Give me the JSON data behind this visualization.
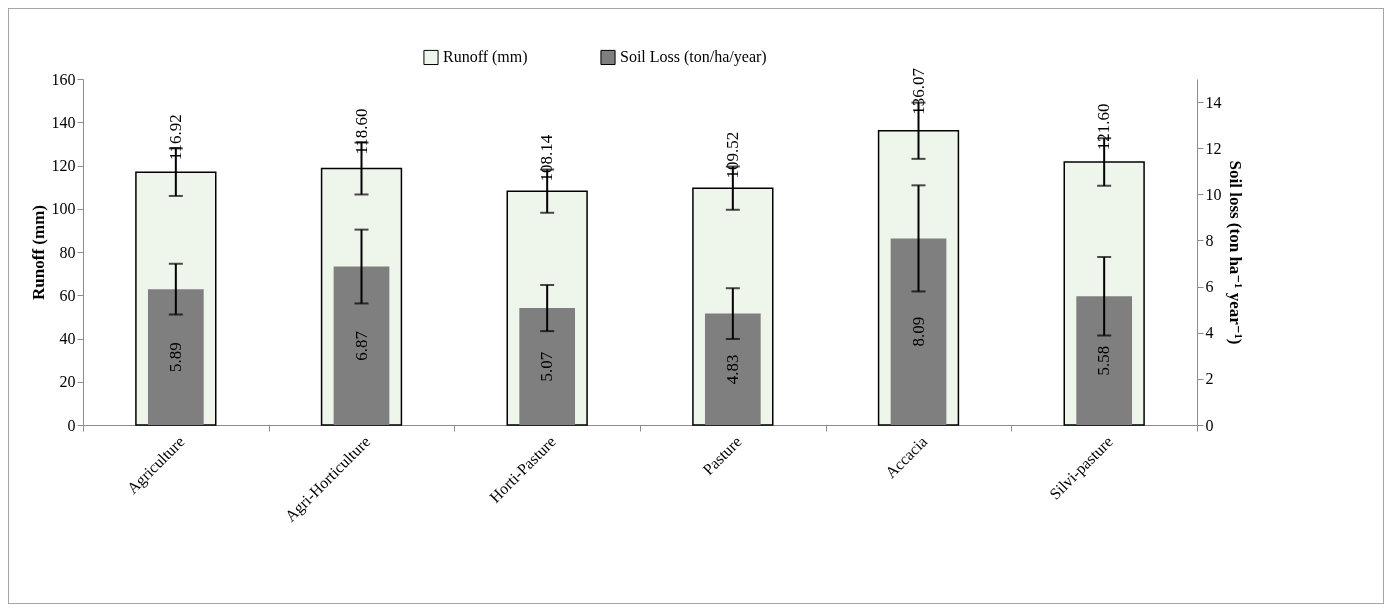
{
  "chart_data": {
    "type": "bar",
    "categories": [
      "Agriculture",
      "Agri-Horticulture",
      "Horti-Pasture",
      "Pasture",
      "Accacia",
      "Silvi-pasture"
    ],
    "series": [
      {
        "name": "Runoff (mm)",
        "color": "#eef5ea",
        "values": [
          116.92,
          118.6,
          108.14,
          109.52,
          136.07,
          121.6
        ],
        "errors": [
          11,
          12,
          10,
          10,
          13,
          11
        ],
        "value_labels": [
          "116.92",
          "118.60",
          "108.14",
          "109.52",
          "136.07",
          "121.60"
        ]
      },
      {
        "name": "Soil Loss (ton/ha/year)",
        "color": "#7f7f7f",
        "axis": "y2",
        "values": [
          5.89,
          6.87,
          5.07,
          4.83,
          8.09,
          5.58
        ],
        "errors": [
          1.1,
          1.6,
          1.0,
          1.1,
          2.3,
          1.7
        ],
        "value_labels": [
          "5.89",
          "6.87",
          "5.07",
          "4.83",
          "8.09",
          "5.58"
        ]
      }
    ],
    "ylabel": "Runoff (mm)",
    "y2label": "Soil loss (ton ha⁻¹ year⁻¹)",
    "ylim": [
      0,
      160
    ],
    "yticks": [
      0,
      20,
      40,
      60,
      80,
      100,
      120,
      140,
      160
    ],
    "y2lim": [
      0,
      15
    ],
    "y2ticks": [
      0,
      2,
      4,
      6,
      8,
      10,
      12,
      14
    ],
    "legend": "top",
    "grid": false
  }
}
